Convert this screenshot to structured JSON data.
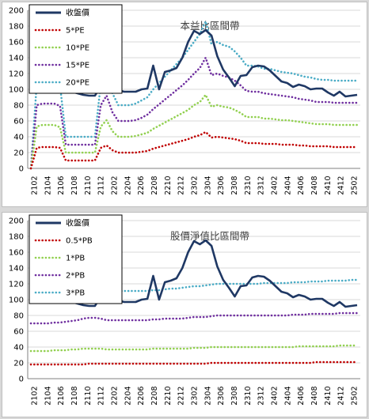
{
  "colors": {
    "price": "#1f3864",
    "band1": "#c00000",
    "band2": "#92d050",
    "band3": "#7030a0",
    "band4": "#4bacc6",
    "grid": "#d9d9d9",
    "axis": "#808080"
  },
  "chart_data": [
    {
      "type": "line",
      "title": "本益比區間帶",
      "x_labels": [
        "2102",
        "2104",
        "2106",
        "2108",
        "2110",
        "2112",
        "2202",
        "2204",
        "2206",
        "2208",
        "2210",
        "2212",
        "2302",
        "2304",
        "2306",
        "2308",
        "2310",
        "2312",
        "2402",
        "2404",
        "2406",
        "2408",
        "2410",
        "2412",
        "2502"
      ],
      "ylim": [
        0,
        200
      ],
      "yticks": [
        0,
        20,
        40,
        60,
        80,
        100,
        120,
        140,
        160,
        180,
        200
      ],
      "grid": "horizontal",
      "legend_position": "top-left",
      "series": [
        {
          "name": "收盤價",
          "style": "solid",
          "values": [
            115,
            112,
            109,
            108,
            107,
            106,
            102,
            97,
            95,
            93,
            92,
            92,
            104,
            106,
            104,
            99,
            97,
            97,
            97,
            100,
            101,
            130,
            100,
            122,
            124,
            127,
            140,
            160,
            174,
            170,
            175,
            168,
            142,
            125,
            115,
            104,
            117,
            118,
            128,
            130,
            129,
            124,
            117,
            110,
            108,
            103,
            106,
            104,
            100,
            101,
            101,
            96,
            92,
            97,
            91,
            92,
            93
          ]
        },
        {
          "name": "5*PE",
          "style": "dotted",
          "values": [
            0,
            26,
            27,
            27,
            27,
            26,
            10,
            10,
            10,
            10,
            10,
            10,
            26,
            29,
            23,
            20,
            20,
            20,
            20,
            21,
            22,
            25,
            27,
            29,
            31,
            33,
            35,
            37,
            40,
            42,
            46,
            39,
            40,
            39,
            38,
            37,
            35,
            32,
            32,
            32,
            31,
            31,
            31,
            30,
            30,
            30,
            29,
            29,
            28,
            28,
            28,
            28,
            27,
            27,
            27,
            27,
            27
          ]
        },
        {
          "name": "10*PE",
          "style": "dotted",
          "values": [
            0,
            53,
            55,
            55,
            55,
            52,
            20,
            20,
            20,
            20,
            20,
            20,
            53,
            61,
            47,
            40,
            40,
            40,
            41,
            43,
            45,
            50,
            54,
            58,
            62,
            66,
            70,
            74,
            80,
            84,
            93,
            78,
            80,
            78,
            77,
            74,
            70,
            65,
            65,
            65,
            63,
            63,
            62,
            61,
            61,
            60,
            59,
            58,
            57,
            56,
            56,
            56,
            55,
            55,
            55,
            55,
            55
          ]
        },
        {
          "name": "15*PE",
          "style": "dotted",
          "values": [
            0,
            80,
            82,
            82,
            82,
            79,
            30,
            30,
            30,
            30,
            30,
            30,
            80,
            92,
            71,
            60,
            60,
            60,
            61,
            64,
            68,
            75,
            81,
            87,
            93,
            99,
            105,
            112,
            120,
            127,
            140,
            118,
            120,
            117,
            115,
            111,
            105,
            98,
            97,
            97,
            95,
            94,
            93,
            92,
            91,
            90,
            88,
            87,
            86,
            84,
            84,
            84,
            83,
            83,
            83,
            83,
            83
          ]
        },
        {
          "name": "20*PE",
          "style": "dotted",
          "values": [
            0,
            107,
            110,
            110,
            110,
            105,
            40,
            40,
            40,
            40,
            40,
            40,
            107,
            122,
            95,
            80,
            80,
            80,
            82,
            86,
            90,
            100,
            108,
            116,
            124,
            132,
            140,
            150,
            160,
            170,
            186,
            157,
            160,
            156,
            154,
            148,
            140,
            130,
            130,
            129,
            126,
            126,
            124,
            122,
            121,
            120,
            118,
            116,
            115,
            113,
            112,
            112,
            111,
            111,
            111,
            111,
            111
          ]
        }
      ]
    },
    {
      "type": "line",
      "title": "股價淨值比區間帶",
      "x_labels": [
        "2102",
        "2104",
        "2106",
        "2108",
        "2110",
        "2112",
        "2202",
        "2204",
        "2206",
        "2208",
        "2210",
        "2212",
        "2302",
        "2304",
        "2306",
        "2308",
        "2310",
        "2312",
        "2402",
        "2404",
        "2406",
        "2408",
        "2410",
        "2412",
        "2502"
      ],
      "ylim": [
        0,
        200
      ],
      "yticks": [
        0,
        20,
        40,
        60,
        80,
        100,
        120,
        140,
        160,
        180,
        200
      ],
      "grid": "horizontal",
      "legend_position": "top-left",
      "series": [
        {
          "name": "收盤價",
          "style": "solid",
          "values": [
            115,
            112,
            109,
            108,
            107,
            106,
            102,
            97,
            95,
            93,
            92,
            92,
            104,
            106,
            104,
            99,
            97,
            97,
            97,
            100,
            101,
            130,
            100,
            122,
            124,
            127,
            140,
            160,
            174,
            170,
            175,
            168,
            142,
            125,
            115,
            104,
            117,
            118,
            128,
            130,
            129,
            124,
            117,
            110,
            108,
            103,
            106,
            104,
            100,
            101,
            101,
            96,
            92,
            97,
            91,
            92,
            93
          ]
        },
        {
          "name": "0.5*PB",
          "style": "dotted",
          "values": [
            18,
            18,
            18,
            18,
            18,
            18,
            18,
            18,
            18,
            18,
            19,
            19,
            19,
            19,
            19,
            19,
            19,
            19,
            19,
            19,
            19,
            19,
            19,
            19,
            19,
            19,
            19,
            19,
            19,
            19,
            19,
            20,
            20,
            20,
            20,
            20,
            20,
            20,
            20,
            20,
            20,
            20,
            20,
            20,
            20,
            20,
            20,
            20,
            20,
            21,
            21,
            21,
            21,
            21,
            21,
            21,
            21
          ]
        },
        {
          "name": "1*PB",
          "style": "dotted",
          "values": [
            35,
            35,
            35,
            35,
            36,
            36,
            36,
            37,
            37,
            38,
            38,
            38,
            38,
            37,
            37,
            37,
            37,
            37,
            37,
            37,
            37,
            38,
            38,
            38,
            38,
            38,
            38,
            38,
            39,
            39,
            39,
            40,
            40,
            40,
            40,
            40,
            40,
            40,
            40,
            40,
            40,
            40,
            40,
            40,
            40,
            40,
            41,
            41,
            41,
            41,
            41,
            41,
            41,
            42,
            42,
            42,
            42
          ]
        },
        {
          "name": "2*PB",
          "style": "dotted",
          "values": [
            70,
            70,
            70,
            70,
            71,
            71,
            72,
            73,
            74,
            76,
            77,
            77,
            76,
            74,
            74,
            74,
            74,
            74,
            74,
            74,
            74,
            75,
            75,
            76,
            76,
            76,
            76,
            77,
            78,
            78,
            78,
            79,
            80,
            80,
            80,
            80,
            80,
            80,
            80,
            80,
            80,
            80,
            80,
            80,
            80,
            81,
            81,
            81,
            82,
            82,
            82,
            82,
            82,
            83,
            83,
            83,
            83
          ]
        },
        {
          "name": "3*PB",
          "style": "dotted",
          "values": [
            105,
            105,
            105,
            106,
            106,
            107,
            108,
            110,
            111,
            113,
            115,
            115,
            113,
            111,
            111,
            111,
            111,
            111,
            111,
            111,
            111,
            112,
            112,
            113,
            114,
            114,
            115,
            116,
            117,
            117,
            118,
            119,
            120,
            120,
            120,
            120,
            120,
            120,
            120,
            120,
            121,
            121,
            121,
            121,
            121,
            122,
            122,
            122,
            123,
            123,
            123,
            124,
            124,
            124,
            124,
            125,
            125
          ]
        }
      ]
    }
  ]
}
